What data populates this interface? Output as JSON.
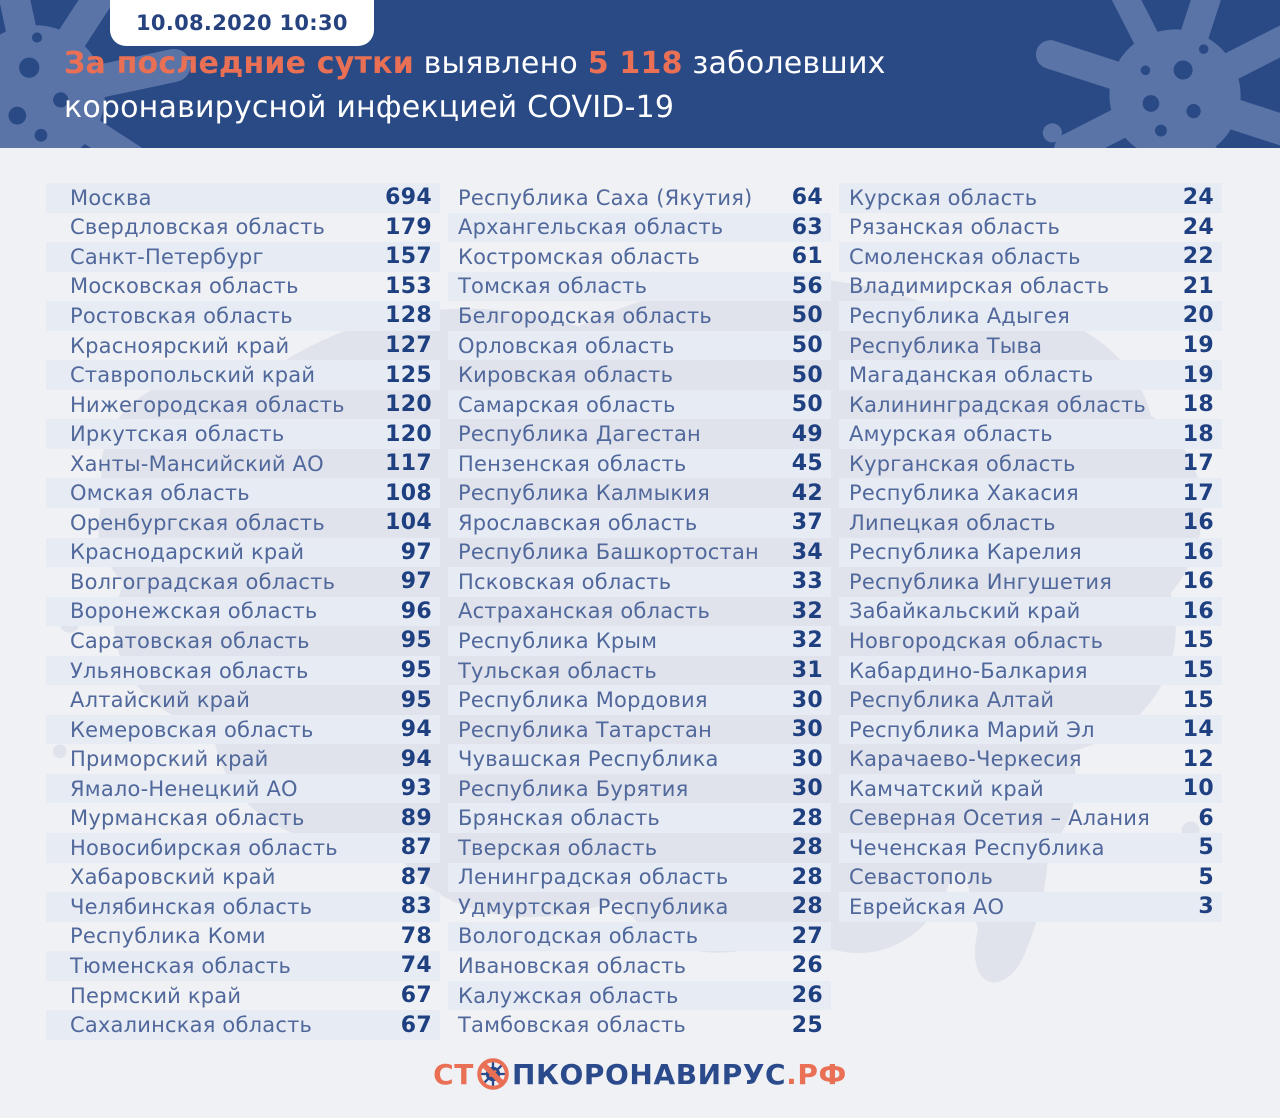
{
  "header": {
    "badge": "10.08.2020 10:30",
    "line1_accent1": "За последние сутки",
    "line1_normal1": " выявлено ",
    "line1_accent2": "5 118",
    "line1_normal2": " заболевших",
    "line2": "коронавирусной инфекцией COVID-19"
  },
  "chart_data": {
    "type": "table",
    "title": "За последние сутки выявлено 5 118 заболевших коронавирусной инфекцией COVID-19",
    "timestamp": "10.08.2020 10:30",
    "total_new_cases": 5118,
    "columns": [
      {
        "rows": [
          [
            "Москва",
            694
          ],
          [
            "Свердловская область",
            179
          ],
          [
            "Санкт-Петербург",
            157
          ],
          [
            "Московская область",
            153
          ],
          [
            "Ростовская область",
            128
          ],
          [
            "Красноярский край",
            127
          ],
          [
            "Ставропольский край",
            125
          ],
          [
            "Нижегородская область",
            120
          ],
          [
            "Иркутская область",
            120
          ],
          [
            "Ханты-Мансийский АО",
            117
          ],
          [
            "Омская область",
            108
          ],
          [
            "Оренбургская область",
            104
          ],
          [
            "Краснодарский край",
            97
          ],
          [
            "Волгоградская область",
            97
          ],
          [
            "Воронежская область",
            96
          ],
          [
            "Саратовская область",
            95
          ],
          [
            "Ульяновская область",
            95
          ],
          [
            "Алтайский край",
            95
          ],
          [
            "Кемеровская область",
            94
          ],
          [
            "Приморский край",
            94
          ],
          [
            "Ямало-Ненецкий АО",
            93
          ],
          [
            "Мурманская область",
            89
          ],
          [
            "Новосибирская область",
            87
          ],
          [
            "Хабаровский край",
            87
          ],
          [
            "Челябинская область",
            83
          ],
          [
            "Республика Коми",
            78
          ],
          [
            "Тюменская область",
            74
          ],
          [
            "Пермский край",
            67
          ],
          [
            "Сахалинская область",
            67
          ]
        ]
      },
      {
        "rows": [
          [
            "Республика Саха (Якутия)",
            64
          ],
          [
            "Архангельская область",
            63
          ],
          [
            "Костромская область",
            61
          ],
          [
            "Томская область",
            56
          ],
          [
            "Белгородская область",
            50
          ],
          [
            "Орловская область",
            50
          ],
          [
            "Кировская область",
            50
          ],
          [
            "Самарская область",
            50
          ],
          [
            "Республика Дагестан",
            49
          ],
          [
            "Пензенская область",
            45
          ],
          [
            "Республика Калмыкия",
            42
          ],
          [
            "Ярославская область",
            37
          ],
          [
            "Республика Башкортостан",
            34
          ],
          [
            "Псковская область",
            33
          ],
          [
            "Астраханская область",
            32
          ],
          [
            "Республика Крым",
            32
          ],
          [
            "Тульская область",
            31
          ],
          [
            "Республика Мордовия",
            30
          ],
          [
            "Республика Татарстан",
            30
          ],
          [
            "Чувашская Республика",
            30
          ],
          [
            "Республика Бурятия",
            30
          ],
          [
            "Брянская область",
            28
          ],
          [
            "Тверская область",
            28
          ],
          [
            "Ленинградская область",
            28
          ],
          [
            "Удмуртская Республика",
            28
          ],
          [
            "Вологодская область",
            27
          ],
          [
            "Ивановская область",
            26
          ],
          [
            "Калужская область",
            26
          ],
          [
            "Тамбовская область",
            25
          ]
        ]
      },
      {
        "rows": [
          [
            "Курская область",
            24
          ],
          [
            "Рязанская область",
            24
          ],
          [
            "Смоленская область",
            22
          ],
          [
            "Владимирская область",
            21
          ],
          [
            "Республика Адыгея",
            20
          ],
          [
            "Республика Тыва",
            19
          ],
          [
            "Магаданская область",
            19
          ],
          [
            "Калининградская область",
            18
          ],
          [
            "Амурская область",
            18
          ],
          [
            "Курганская область",
            17
          ],
          [
            "Республика Хакасия",
            17
          ],
          [
            "Липецкая область",
            16
          ],
          [
            "Республика Карелия",
            16
          ],
          [
            "Республика Ингушетия",
            16
          ],
          [
            "Забайкальский край",
            16
          ],
          [
            "Новгородская область",
            15
          ],
          [
            "Кабардино-Балкария",
            15
          ],
          [
            "Республика Алтай",
            15
          ],
          [
            "Республика Марий Эл",
            14
          ],
          [
            "Карачаево-Черкесия",
            12
          ],
          [
            "Камчатский край",
            10
          ],
          [
            "Северная Осетия – Алания",
            6
          ],
          [
            "Чеченская Республика",
            5
          ],
          [
            "Севастополь",
            5
          ],
          [
            "Еврейская АО",
            3
          ]
        ]
      }
    ]
  },
  "footer": {
    "logo_prefix": "СТ",
    "logo_main": "ПКОРОНАВИРУС",
    "logo_tld": ".РФ"
  },
  "colors": {
    "header-bg": "#2a4a86",
    "accent": "#e96f55",
    "stripe": "#e7ebf3",
    "label": "#50689b",
    "value": "#1e3f80",
    "logo-blue": "#2b4a8b"
  }
}
